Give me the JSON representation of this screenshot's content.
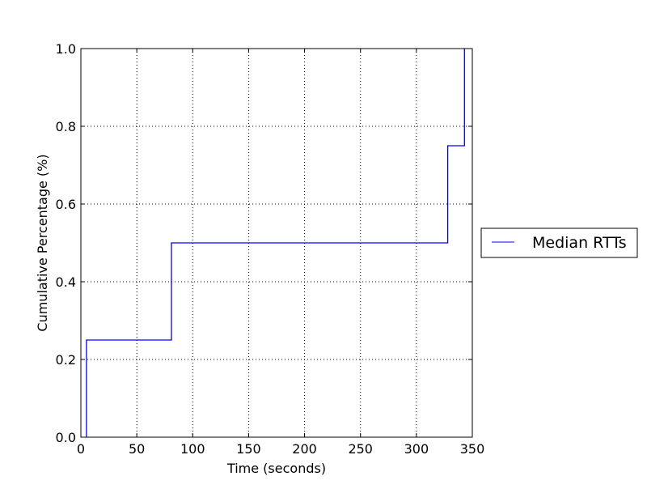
{
  "chart_data": {
    "type": "line",
    "drawstyle": "steps-post",
    "xlabel": "Time (seconds)",
    "ylabel": "Cumulative Percentage (%)",
    "xlim": [
      0,
      350
    ],
    "ylim": [
      0.0,
      1.0
    ],
    "xticks": [
      0,
      50,
      100,
      150,
      200,
      250,
      300,
      350
    ],
    "xtick_labels": [
      "0",
      "50",
      "100",
      "150",
      "200",
      "250",
      "300",
      "350"
    ],
    "yticks": [
      0.0,
      0.2,
      0.4,
      0.6,
      0.8,
      1.0
    ],
    "ytick_labels": [
      "0.0",
      "0.2",
      "0.4",
      "0.6",
      "0.8",
      "1.0"
    ],
    "grid": true,
    "legend_position": "outside right",
    "series": [
      {
        "name": "Median RTTs",
        "color": "#0000ff",
        "x": [
          5,
          5,
          81,
          81,
          328,
          328,
          343,
          343
        ],
        "y": [
          0.0,
          0.25,
          0.25,
          0.5,
          0.5,
          0.75,
          0.75,
          1.0
        ]
      }
    ]
  }
}
